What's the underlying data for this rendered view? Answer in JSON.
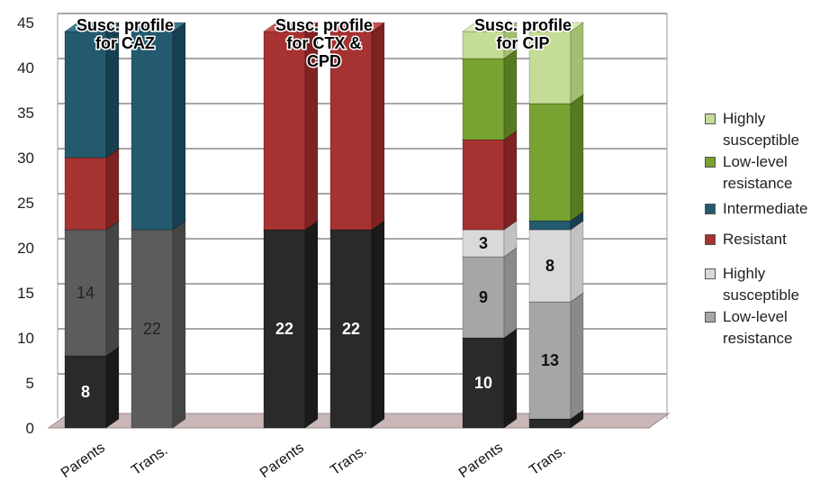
{
  "chart_data": {
    "type": "bar",
    "stacked": true,
    "three_d": true,
    "title": "",
    "xlabel": "",
    "ylabel": "",
    "ylim": [
      0,
      45
    ],
    "yticks": [
      "0",
      "5",
      "10",
      "15",
      "20",
      "25",
      "30",
      "35",
      "40",
      "45"
    ],
    "grid": true,
    "legend_position": "right",
    "categories": [
      "Parents",
      "Trans.",
      "Parents",
      "Trans.",
      "Parents",
      "Trans."
    ],
    "groups": [
      {
        "label": "Susc. profile for CAZ",
        "bars": [
          0,
          1
        ]
      },
      {
        "label": "Susc. profile for CTX & CPD",
        "bars": [
          2,
          3
        ]
      },
      {
        "label": "Susc. profile for CIP",
        "bars": [
          4,
          5
        ]
      }
    ],
    "bars": [
      {
        "segments": [
          {
            "series": "s-resistant",
            "value": 8,
            "label": "8"
          },
          {
            "series": "s-intermediate",
            "value": 14,
            "label": "14"
          },
          {
            "series": "t-resistant",
            "value": 8,
            "label": ""
          },
          {
            "series": "t-intermediate",
            "value": 14,
            "label": ""
          }
        ]
      },
      {
        "segments": [
          {
            "series": "s-intermediate",
            "value": 22,
            "label": "22"
          },
          {
            "series": "t-intermediate",
            "value": 22,
            "label": ""
          }
        ]
      },
      {
        "segments": [
          {
            "series": "s-resistant",
            "value": 22,
            "label": "22"
          },
          {
            "series": "t-resistant",
            "value": 22,
            "label": ""
          }
        ]
      },
      {
        "segments": [
          {
            "series": "s-resistant",
            "value": 22,
            "label": "22"
          },
          {
            "series": "t-resistant",
            "value": 22,
            "label": ""
          }
        ]
      },
      {
        "segments": [
          {
            "series": "s-resistant",
            "value": 10,
            "label": "10"
          },
          {
            "series": "s-low-level",
            "value": 9,
            "label": "9"
          },
          {
            "series": "s-highly",
            "value": 3,
            "label": "3"
          },
          {
            "series": "t-resistant",
            "value": 10,
            "label": ""
          },
          {
            "series": "t-low-level",
            "value": 9,
            "label": ""
          },
          {
            "series": "t-highly",
            "value": 3,
            "label": ""
          }
        ]
      },
      {
        "segments": [
          {
            "series": "s-resistant",
            "value": 1,
            "label": "1"
          },
          {
            "series": "s-low-level",
            "value": 13,
            "label": "13"
          },
          {
            "series": "s-highly",
            "value": 8,
            "label": "8"
          },
          {
            "series": "t-intermediate",
            "value": 1,
            "label": ""
          },
          {
            "series": "t-low-level",
            "value": 13,
            "label": ""
          },
          {
            "series": "t-highly",
            "value": 8,
            "label": ""
          }
        ]
      }
    ],
    "series_styles": {
      "s-resistant": {
        "front": "#2a2a2a",
        "side": "#1a1a1a",
        "top": "#4a4a4a",
        "text": "#ffffff"
      },
      "s-intermediate": {
        "front": "#5c5c5c",
        "side": "#454545",
        "top": "#7a7a7a",
        "text": "#222222"
      },
      "s-low-level": {
        "front": "#a6a6a6",
        "side": "#8a8a8a",
        "top": "#c0c0c0",
        "text": "#111111"
      },
      "s-highly": {
        "front": "#d9d9d9",
        "side": "#c2c2c2",
        "top": "#ececec",
        "text": "#111111"
      },
      "t-resistant": {
        "front": "#a63232",
        "side": "#7e2222",
        "top": "#c85454",
        "text": "#ffffff"
      },
      "t-intermediate": {
        "front": "#235a6e",
        "side": "#173f4f",
        "top": "#3b7990",
        "text": "#ffffff"
      },
      "t-low-level": {
        "front": "#78a232",
        "side": "#577a20",
        "top": "#9ac254",
        "text": "#ffffff"
      },
      "t-highly": {
        "front": "#c4dc95",
        "side": "#a2bf70",
        "top": "#dcedbb",
        "text": "#222222"
      }
    },
    "legend": [
      {
        "label": "Highly susceptible",
        "series": "t-highly"
      },
      {
        "label": "Low-level resistance",
        "series": "t-low-level"
      },
      {
        "label": "Intermediate",
        "series": "t-intermediate"
      },
      {
        "label": "Resistant",
        "series": "t-resistant"
      },
      {
        "label": "Highly susceptible",
        "series": "s-highly"
      },
      {
        "label": "Low-level resistance",
        "series": "s-low-level"
      }
    ],
    "colors": {
      "floor": "#c9b7b7",
      "floor_edge": "#9a8a8a",
      "gridline": "#8c8c8c",
      "wall_edge": "#999999"
    }
  }
}
